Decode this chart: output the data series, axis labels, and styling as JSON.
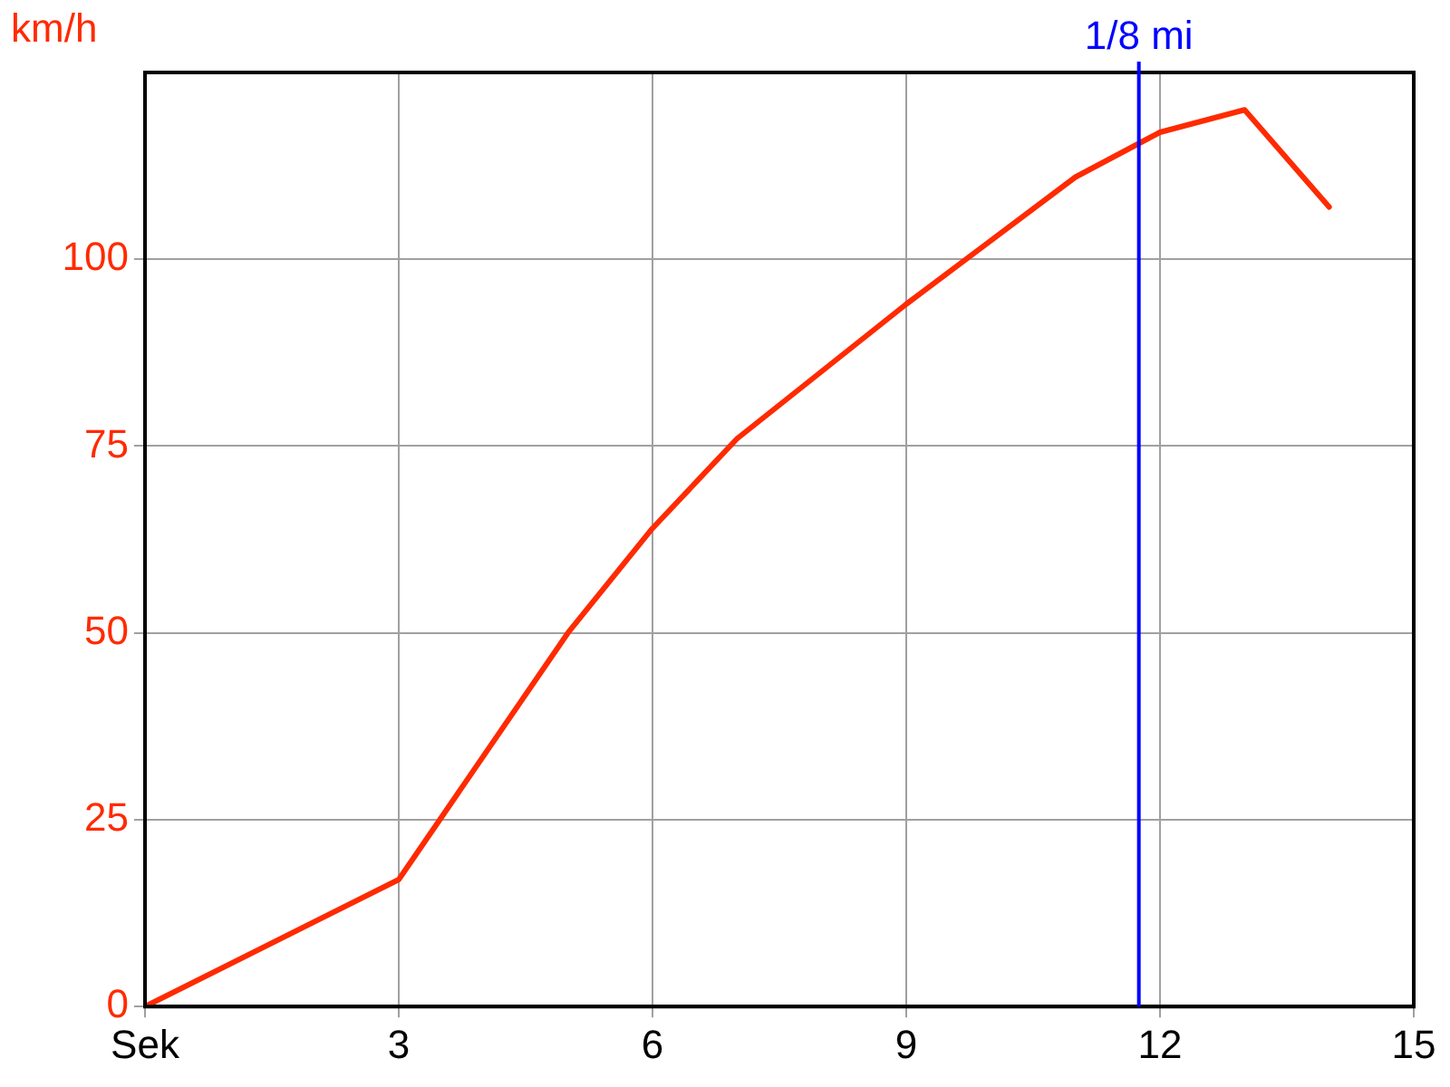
{
  "chart_data": {
    "type": "line",
    "ylabel": "km/h",
    "x": [
      0,
      3,
      5,
      6,
      7,
      8,
      9,
      10,
      11,
      12,
      13,
      14
    ],
    "series": [
      {
        "color": "#ff2a00",
        "values": [
          0,
          17,
          50,
          64,
          76,
          85,
          94,
          102.5,
          111,
          117,
          120,
          107
        ]
      }
    ],
    "xlim": [
      0,
      15
    ],
    "xticks": [
      {
        "value": 0,
        "label": "Sek"
      },
      3,
      6,
      9,
      12,
      15
    ],
    "ylim": [
      0,
      125
    ],
    "yticks": [
      0,
      25,
      50,
      75,
      100
    ],
    "grid": true,
    "legend": false,
    "marker": "none",
    "line_style": "solid",
    "ref_lines": [
      {
        "axis": "x",
        "value": 11.75,
        "label": "1/8 mi",
        "color": "#0000ff"
      }
    ]
  }
}
